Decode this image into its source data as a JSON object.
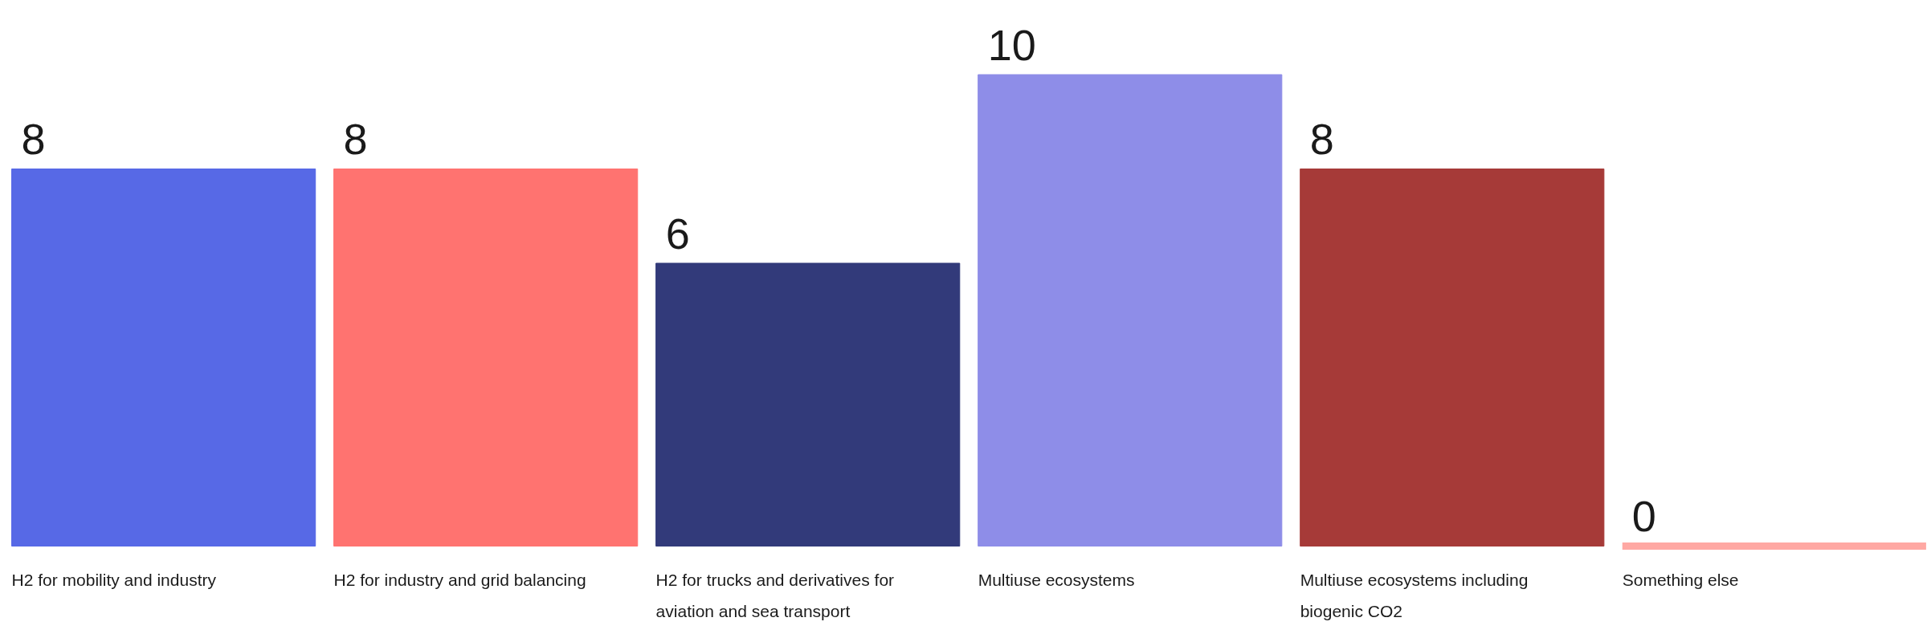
{
  "chart_data": {
    "type": "bar",
    "categories": [
      "H2 for mobility and industry",
      "H2 for industry and grid balancing",
      "H2 for trucks and derivatives for aviation and sea transport",
      "Multiuse ecosystems",
      "Multiuse ecosystems including biogenic CO2",
      "Something else"
    ],
    "values": [
      8,
      8,
      6,
      10,
      8,
      0
    ],
    "colors": [
      "#5769e6",
      "#ff7370",
      "#323a7a",
      "#8e8de8",
      "#a63a38",
      "#ffa8a3"
    ],
    "data_labels": true,
    "grid": false
  }
}
